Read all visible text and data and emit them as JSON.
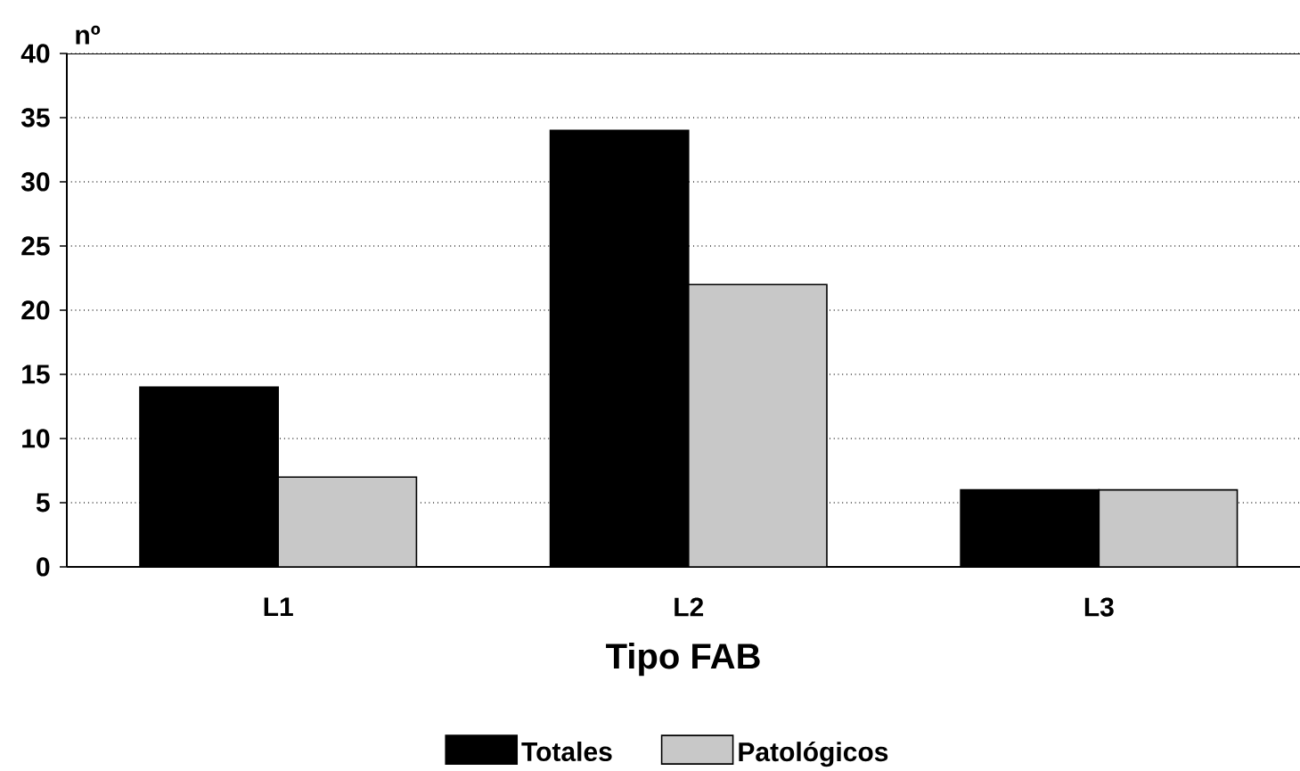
{
  "chart_data": {
    "type": "bar",
    "xlabel": "Tipo FAB",
    "ylabel": "nº",
    "categories": [
      "L1",
      "L2",
      "L3"
    ],
    "series": [
      {
        "name": "Totales",
        "color": "#000000",
        "values": [
          14,
          34,
          6
        ]
      },
      {
        "name": "Patológicos",
        "color": "#c8c8c8",
        "values": [
          7,
          22,
          6
        ]
      }
    ],
    "ylim": [
      0,
      40
    ],
    "yticks": [
      0,
      5,
      10,
      15,
      20,
      25,
      30,
      35,
      40
    ],
    "grid": "y",
    "legend": "bottom"
  }
}
